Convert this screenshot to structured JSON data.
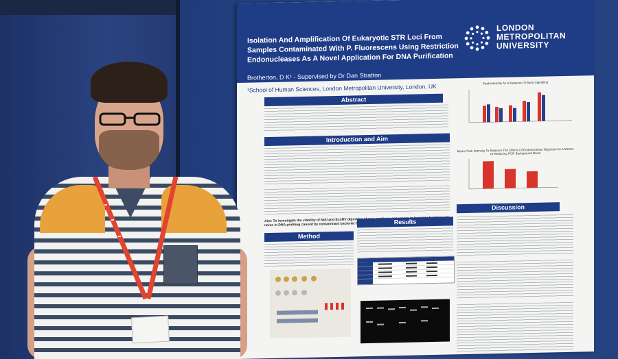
{
  "poster": {
    "title": "Isolation And Amplification Of Eukaryotic STR Loci From Samples Contaminated With P. Fluorescens Using Restriction Endonucleases As A Novel Application For DNA Purification",
    "author": "Brotherton, D K¹ - Supervised by Dr Dan Stratton",
    "school": "¹School of Human Sciences, London Metropolitan University, London, UK",
    "logo": "LONDON METROPOLITAN UNIVERSITY",
    "sections": {
      "abstract": "Abstract",
      "intro": "Introduction and Aim",
      "method": "Method",
      "results": "Results",
      "discussion": "Discussion"
    },
    "aim": "Aim: To investigate the viability of NotI and EcoRV digestion of non-amplicon sequences in lowering background noise in DNA profiling caused by contaminant bacterial DNA.",
    "chart1_title": "Peak Intensity As A Measure Of Band Signalling",
    "chart2_title": "Mean Peak Intensity To Measure The Effects Of Endonuclease Digestion As A Means Of Reducing PCR Background Noise"
  },
  "colors": {
    "poster_blue": "#1f3c87",
    "bar_red": "#d9342b",
    "bar_blue": "#27408b",
    "lanyard": "#e2452f"
  }
}
